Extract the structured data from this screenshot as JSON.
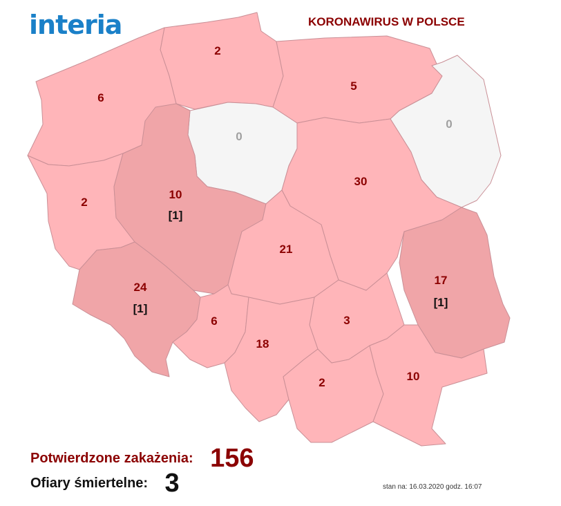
{
  "logo": {
    "text": "interia",
    "color": "#1a80c8"
  },
  "title": {
    "text": "KORONAWIRUS W POLSCE",
    "color": "#8b0000"
  },
  "colors": {
    "low": "#ffb5b9",
    "high": "#f0a5a8",
    "none": "#f5f5f5",
    "count_text": "#8b0000",
    "zero_text": "#a0a0a0",
    "deaths_text": "#111111",
    "border": "#c98f96"
  },
  "regions": [
    {
      "name": "pomorskie",
      "confirmed": "2",
      "deaths": "",
      "fill": "low"
    },
    {
      "name": "warmińsko-mazurskie",
      "confirmed": "5",
      "deaths": "",
      "fill": "low"
    },
    {
      "name": "zachodniopomorskie",
      "confirmed": "6",
      "deaths": "",
      "fill": "low"
    },
    {
      "name": "kujawsko-pomorskie",
      "confirmed": "0",
      "deaths": "",
      "fill": "none"
    },
    {
      "name": "podlaskie",
      "confirmed": "0",
      "deaths": "",
      "fill": "none"
    },
    {
      "name": "lubuskie",
      "confirmed": "2",
      "deaths": "",
      "fill": "low"
    },
    {
      "name": "wielkopolskie",
      "confirmed": "10",
      "deaths": "[1]",
      "fill": "high"
    },
    {
      "name": "mazowieckie",
      "confirmed": "30",
      "deaths": "",
      "fill": "low"
    },
    {
      "name": "łódzkie",
      "confirmed": "21",
      "deaths": "",
      "fill": "low"
    },
    {
      "name": "dolnośląskie",
      "confirmed": "24",
      "deaths": "[1]",
      "fill": "high"
    },
    {
      "name": "lubelskie",
      "confirmed": "17",
      "deaths": "[1]",
      "fill": "high"
    },
    {
      "name": "opolskie",
      "confirmed": "6",
      "deaths": "",
      "fill": "low"
    },
    {
      "name": "świętokrzyskie",
      "confirmed": "3",
      "deaths": "",
      "fill": "low"
    },
    {
      "name": "śląskie",
      "confirmed": "18",
      "deaths": "",
      "fill": "low"
    },
    {
      "name": "małopolskie",
      "confirmed": "2",
      "deaths": "",
      "fill": "low"
    },
    {
      "name": "podkarpackie",
      "confirmed": "10",
      "deaths": "",
      "fill": "low"
    }
  ],
  "summary": {
    "confirmed_label": "Potwierdzone zakażenia:",
    "confirmed_value": "156",
    "confirmed_color": "#8b0000",
    "deaths_label": "Ofiary śmiertelne:",
    "deaths_value": "3",
    "deaths_color": "#111111"
  },
  "stamp": "stan na: 16.03.2020 godz. 16:07"
}
